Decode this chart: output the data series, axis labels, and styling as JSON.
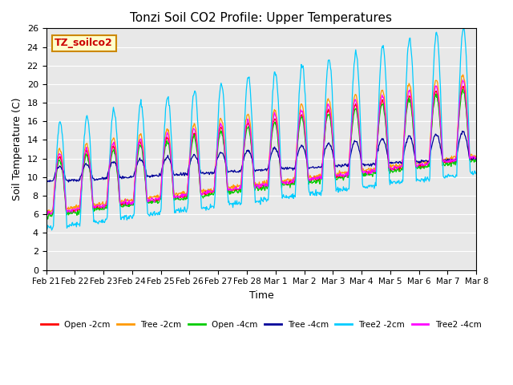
{
  "title": "Tonzi Soil CO2 Profile: Upper Temperatures",
  "ylabel": "Soil Temperature (C)",
  "xlabel": "Time",
  "watermark": "TZ_soilco2",
  "ylim": [
    0,
    26
  ],
  "yticks": [
    0,
    2,
    4,
    6,
    8,
    10,
    12,
    14,
    16,
    18,
    20,
    22,
    24,
    26
  ],
  "background_color": "#e8e8e8",
  "series": [
    {
      "label": "Open -2cm",
      "color": "#ff0000"
    },
    {
      "label": "Tree -2cm",
      "color": "#ff9900"
    },
    {
      "label": "Open -4cm",
      "color": "#00cc00"
    },
    {
      "label": "Tree -4cm",
      "color": "#000099"
    },
    {
      "label": "Tree2 -2cm",
      "color": "#00ccff"
    },
    {
      "label": "Tree2 -4cm",
      "color": "#ff00ff"
    }
  ],
  "xtick_labels": [
    "Feb 21",
    "Feb 22",
    "Feb 23",
    "Feb 24",
    "Feb 25",
    "Feb 26",
    "Feb 27",
    "Feb 28",
    "Mar 1",
    "Mar 2",
    "Mar 3",
    "Mar 4",
    "Mar 5",
    "Mar 6",
    "Mar 7",
    "Mar 8"
  ],
  "n_days": 16
}
